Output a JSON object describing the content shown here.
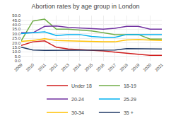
{
  "chart_data": {
    "type": "line",
    "title": "Abortion rates by age group in London",
    "x": [
      2009,
      2010,
      2011,
      2012,
      2013,
      2014,
      2015,
      2016,
      2017,
      2018,
      2019,
      2020,
      2021
    ],
    "series": [
      {
        "name": "Under 18",
        "color": "#d01c1c",
        "values": [
          17.0,
          21.0,
          22.0,
          15.0,
          13.0,
          12.5,
          12.0,
          11.0,
          9.5,
          8.5,
          7.5,
          6.0,
          6.0
        ]
      },
      {
        "name": "18-19",
        "color": "#70ad47",
        "values": [
          22.0,
          44.0,
          46.0,
          35.0,
          35.0,
          34.0,
          33.0,
          31.0,
          29.0,
          29.0,
          29.0,
          24.0,
          24.0
        ]
      },
      {
        "name": "20-24",
        "color": "#7030a0",
        "values": [
          31.0,
          31.0,
          38.0,
          38.5,
          37.0,
          36.5,
          35.5,
          35.0,
          36.0,
          38.0,
          38.0,
          35.0,
          35.0
        ]
      },
      {
        "name": "25-29",
        "color": "#00b0f0",
        "values": [
          30.0,
          31.0,
          32.0,
          28.0,
          29.0,
          29.0,
          27.0,
          26.0,
          26.0,
          29.0,
          29.0,
          29.0,
          29.0
        ]
      },
      {
        "name": "30-34",
        "color": "#ffc000",
        "values": [
          21.5,
          22.5,
          24.5,
          22.5,
          22.0,
          21.5,
          21.5,
          21.0,
          21.0,
          23.0,
          23.5,
          23.0,
          22.5
        ]
      },
      {
        "name": "35 +",
        "color": "#1f3864",
        "values": [
          15.0,
          12.0,
          11.5,
          11.5,
          11.5,
          11.5,
          11.5,
          11.5,
          12.0,
          13.5,
          13.5,
          13.0,
          13.0
        ]
      }
    ],
    "xlim": [
      2009,
      2021
    ],
    "xticks": [
      2009,
      2010,
      2011,
      2012,
      2013,
      2014,
      2015,
      2016,
      2017,
      2018,
      2019,
      2020,
      2021
    ],
    "ylim": [
      0,
      50
    ],
    "yticks": [
      {
        "value": 0,
        "label": "0.0"
      },
      {
        "value": 5,
        "label": "5.0"
      },
      {
        "value": 10,
        "label": "10.0"
      },
      {
        "value": 15,
        "label": "15.0"
      },
      {
        "value": 20,
        "label": "20.0"
      },
      {
        "value": 25,
        "label": "25.0"
      },
      {
        "value": 30,
        "label": "30.0"
      },
      {
        "value": 35,
        "label": "35.0"
      },
      {
        "value": 40,
        "label": "40.0"
      },
      {
        "value": 45,
        "label": "45.0"
      },
      {
        "value": 50,
        "label": "50.0"
      }
    ],
    "grid": true,
    "legend": "bottom"
  }
}
